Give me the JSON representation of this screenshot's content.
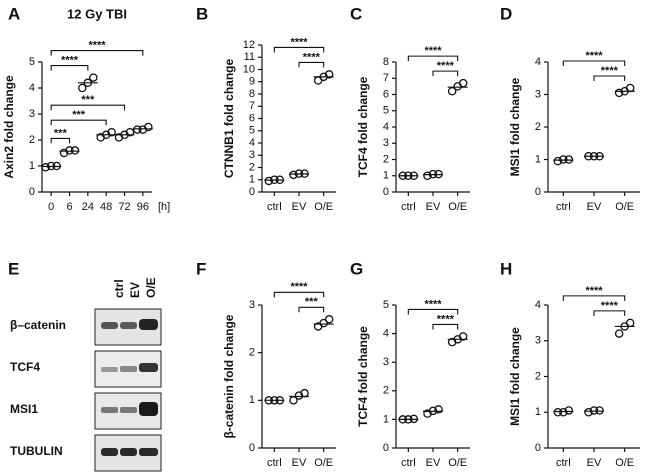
{
  "chart_data": [
    {
      "type": "dot",
      "panel": "A",
      "title": "12 Gy TBI",
      "ylabel": "Axin2 fold change",
      "xlabel": "[h]",
      "categories": [
        "0",
        "6",
        "24",
        "48",
        "72",
        "96"
      ],
      "values": [
        [
          0.95,
          1.0,
          1.0
        ],
        [
          1.5,
          1.6,
          1.6
        ],
        [
          4.0,
          4.2,
          4.4
        ],
        [
          2.1,
          2.2,
          2.3
        ],
        [
          2.1,
          2.2,
          2.3
        ],
        [
          2.4,
          2.4,
          2.5
        ]
      ],
      "means": [
        0.98,
        1.57,
        4.2,
        2.2,
        2.2,
        2.43
      ],
      "ylim": [
        0,
        5
      ],
      "yticks": [
        0,
        1,
        2,
        3,
        4,
        5
      ],
      "comparisons": [
        {
          "from": "0",
          "to": "6",
          "label": "***"
        },
        {
          "from": "0",
          "to": "48",
          "label": "***"
        },
        {
          "from": "0",
          "to": "72",
          "label": "***"
        },
        {
          "from": "0",
          "to": "24",
          "label": "****"
        },
        {
          "from": "0",
          "to": "96",
          "label": "****"
        }
      ]
    },
    {
      "type": "dot",
      "panel": "B",
      "ylabel": "CTNNB1 fold change",
      "categories": [
        "ctrl",
        "EV",
        "O/E"
      ],
      "values": [
        [
          0.9,
          1.0,
          1.0
        ],
        [
          1.4,
          1.5,
          1.5
        ],
        [
          9.1,
          9.4,
          9.6
        ]
      ],
      "means": [
        0.97,
        1.47,
        9.4
      ],
      "ylim": [
        0,
        12
      ],
      "yticks": [
        0,
        1,
        2,
        3,
        4,
        5,
        6,
        7,
        8,
        9,
        10,
        11,
        12
      ],
      "comparisons": [
        {
          "from": "EV",
          "to": "O/E",
          "label": "****"
        },
        {
          "from": "ctrl",
          "to": "O/E",
          "label": "****"
        }
      ]
    },
    {
      "type": "dot",
      "panel": "C",
      "ylabel": "TCF4 fold change",
      "categories": [
        "ctrl",
        "EV",
        "O/E"
      ],
      "values": [
        [
          1.0,
          1.0,
          1.0
        ],
        [
          1.0,
          1.1,
          1.1
        ],
        [
          6.2,
          6.5,
          6.7
        ]
      ],
      "means": [
        1.0,
        1.07,
        6.45
      ],
      "ylim": [
        0,
        8
      ],
      "yticks": [
        0,
        1,
        2,
        3,
        4,
        5,
        6,
        7,
        8
      ],
      "comparisons": [
        {
          "from": "EV",
          "to": "O/E",
          "label": "****"
        },
        {
          "from": "ctrl",
          "to": "O/E",
          "label": "****"
        }
      ]
    },
    {
      "type": "dot",
      "panel": "D",
      "ylabel": "MSI1 fold change",
      "categories": [
        "ctrl",
        "EV",
        "O/E"
      ],
      "values": [
        [
          0.95,
          1.0,
          1.0
        ],
        [
          1.1,
          1.1,
          1.1
        ],
        [
          3.05,
          3.1,
          3.2
        ]
      ],
      "means": [
        0.98,
        1.1,
        3.1
      ],
      "ylim": [
        0,
        4
      ],
      "yticks": [
        0,
        1,
        2,
        3,
        4
      ],
      "comparisons": [
        {
          "from": "EV",
          "to": "O/E",
          "label": "****"
        },
        {
          "from": "ctrl",
          "to": "O/E",
          "label": "****"
        }
      ]
    },
    {
      "type": "dot",
      "panel": "F",
      "ylabel": "β-catenin fold change",
      "categories": [
        "ctrl",
        "EV",
        "O/E"
      ],
      "values": [
        [
          1.0,
          1.0,
          1.0
        ],
        [
          1.0,
          1.1,
          1.15
        ],
        [
          2.55,
          2.62,
          2.7
        ]
      ],
      "means": [
        1.0,
        1.08,
        2.6
      ],
      "ylim": [
        0,
        3
      ],
      "yticks": [
        0,
        1,
        2,
        3
      ],
      "comparisons": [
        {
          "from": "EV",
          "to": "O/E",
          "label": "***"
        },
        {
          "from": "ctrl",
          "to": "O/E",
          "label": "****"
        }
      ]
    },
    {
      "type": "dot",
      "panel": "G",
      "ylabel": "TCF4 fold change",
      "categories": [
        "ctrl",
        "EV",
        "O/E"
      ],
      "values": [
        [
          1.0,
          1.0,
          1.02
        ],
        [
          1.2,
          1.3,
          1.35
        ],
        [
          3.7,
          3.8,
          3.9
        ]
      ],
      "means": [
        1.0,
        1.28,
        3.8
      ],
      "ylim": [
        0,
        5
      ],
      "yticks": [
        0,
        1,
        2,
        3,
        4,
        5
      ],
      "comparisons": [
        {
          "from": "EV",
          "to": "O/E",
          "label": "****"
        },
        {
          "from": "ctrl",
          "to": "O/E",
          "label": "****"
        }
      ]
    },
    {
      "type": "dot",
      "panel": "H",
      "ylabel": "MSI1 fold change",
      "categories": [
        "ctrl",
        "EV",
        "O/E"
      ],
      "values": [
        [
          1.0,
          1.0,
          1.05
        ],
        [
          1.0,
          1.05,
          1.05
        ],
        [
          3.2,
          3.4,
          3.5
        ]
      ],
      "means": [
        1.02,
        1.03,
        3.4
      ],
      "ylim": [
        0,
        4
      ],
      "yticks": [
        0,
        1,
        2,
        3,
        4
      ],
      "comparisons": [
        {
          "from": "EV",
          "to": "O/E",
          "label": "****"
        },
        {
          "from": "ctrl",
          "to": "O/E",
          "label": "****"
        }
      ]
    }
  ],
  "western_blot": {
    "panel": "E",
    "lanes": [
      "ctrl",
      "EV",
      "O/E"
    ],
    "rows": [
      "β–catenin",
      "TCF4",
      "MSI1",
      "TUBULIN"
    ]
  }
}
